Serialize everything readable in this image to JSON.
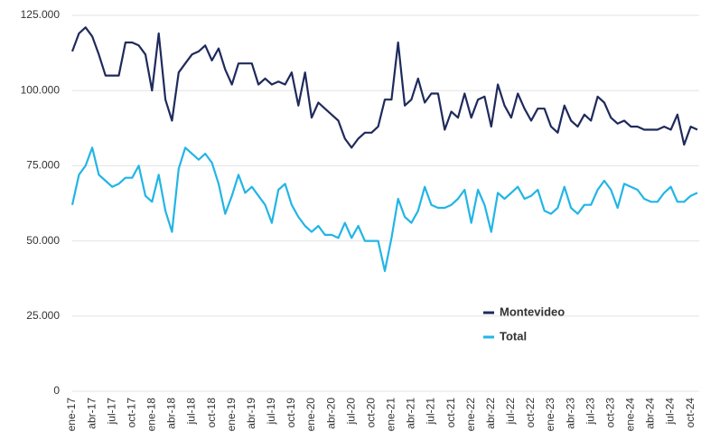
{
  "chart_data": {
    "type": "line",
    "categories": [
      "ene-17",
      null,
      null,
      "abr-17",
      null,
      null,
      "jul-17",
      null,
      null,
      "oct-17",
      null,
      null,
      "ene-18",
      null,
      null,
      "abr-18",
      null,
      null,
      "jul-18",
      null,
      null,
      "oct-18",
      null,
      null,
      "ene-19",
      null,
      null,
      "abr-19",
      null,
      null,
      "jul-19",
      null,
      null,
      "oct-19",
      null,
      null,
      "ene-20",
      null,
      null,
      "abr-20",
      null,
      null,
      "jul-20",
      null,
      null,
      "oct-20",
      null,
      null,
      "ene-21",
      null,
      null,
      "abr-21",
      null,
      null,
      "jul-21",
      null,
      null,
      "oct-21",
      null,
      null,
      "ene-22",
      null,
      null,
      "abr-22",
      null,
      null,
      "jul-22",
      null,
      null,
      "oct-22",
      null,
      null,
      "ene-23",
      null,
      null,
      "abr-23",
      null,
      null,
      "jul-23",
      null,
      null,
      "oct-23",
      null,
      null,
      "ene-24",
      null,
      null,
      "abr-24",
      null,
      null,
      "jul-24",
      null,
      null,
      "oct-24",
      null
    ],
    "series": [
      {
        "name": "Montevideo",
        "color": "#1f2a5c",
        "values": [
          113000,
          119000,
          121000,
          118000,
          112000,
          105000,
          105000,
          105000,
          116000,
          116000,
          115000,
          112000,
          100000,
          119000,
          97000,
          90000,
          106000,
          109000,
          112000,
          113000,
          115000,
          110000,
          114000,
          107000,
          102000,
          109000,
          109000,
          109000,
          102000,
          104000,
          102000,
          103000,
          102000,
          106000,
          95000,
          106000,
          91000,
          96000,
          94000,
          92000,
          90000,
          84000,
          81000,
          84000,
          86000,
          86000,
          88000,
          97000,
          97000,
          116000,
          95000,
          97000,
          104000,
          96000,
          99000,
          99000,
          87000,
          93000,
          91000,
          99000,
          91000,
          97000,
          98000,
          88000,
          102000,
          95000,
          91000,
          99000,
          94000,
          90000,
          94000,
          94000,
          88000,
          86000,
          95000,
          90000,
          88000,
          92000,
          90000,
          98000,
          96000,
          91000,
          89000,
          90000,
          88000,
          88000,
          87000,
          87000,
          87000,
          88000,
          87000,
          92000,
          82000,
          88000,
          87000
        ]
      },
      {
        "name": "Total",
        "color": "#22b5e6",
        "values": [
          62000,
          72000,
          75000,
          81000,
          72000,
          70000,
          68000,
          69000,
          71000,
          71000,
          75000,
          65000,
          63000,
          72000,
          60000,
          53000,
          74000,
          81000,
          79000,
          77000,
          79000,
          76000,
          69000,
          59000,
          65000,
          72000,
          66000,
          68000,
          65000,
          62000,
          56000,
          67000,
          69000,
          62000,
          58000,
          55000,
          53000,
          55000,
          52000,
          52000,
          51000,
          56000,
          51000,
          55000,
          50000,
          50000,
          50000,
          40000,
          51000,
          64000,
          58000,
          56000,
          60000,
          68000,
          62000,
          61000,
          61000,
          62000,
          64000,
          67000,
          56000,
          67000,
          62000,
          53000,
          66000,
          64000,
          66000,
          68000,
          64000,
          65000,
          67000,
          60000,
          59000,
          61000,
          68000,
          61000,
          59000,
          62000,
          62000,
          67000,
          70000,
          67000,
          61000,
          69000,
          68000,
          67000,
          64000,
          63000,
          63000,
          66000,
          68000,
          63000,
          63000,
          65000,
          66000
        ]
      }
    ],
    "ylim": [
      0,
      125000
    ],
    "yticks": [
      0,
      {
        "value": 25000,
        "label": "25.000"
      },
      {
        "value": 50000,
        "label": "50.000"
      },
      {
        "value": 75000,
        "label": "75.000"
      },
      {
        "value": 100000,
        "label": "100.000"
      },
      {
        "value": 125000,
        "label": "125.000"
      }
    ],
    "grid": true
  }
}
